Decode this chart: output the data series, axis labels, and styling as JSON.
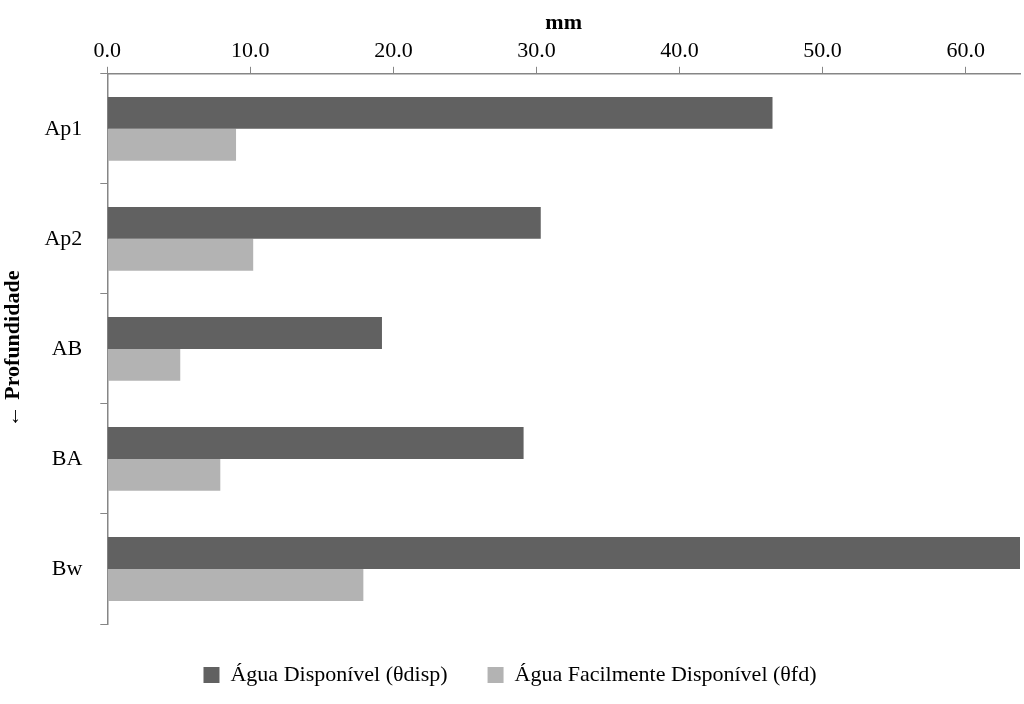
{
  "chart_data": {
    "type": "bar",
    "orientation": "horizontal",
    "xlabel": "mm",
    "ylabel": "← Profundidade",
    "categories": [
      "Ap1",
      "Ap2",
      "AB",
      "BA",
      "Bw"
    ],
    "series": [
      {
        "name": "Água Disponível (θdisp)",
        "color": "#616161",
        "values": [
          46.5,
          30.3,
          19.2,
          29.1,
          63.8
        ]
      },
      {
        "name": "Água Facilmente Disponível (θfd)",
        "color": "#b3b3b3",
        "values": [
          9.0,
          10.2,
          5.1,
          7.9,
          17.9
        ]
      }
    ],
    "xlim": [
      0,
      63.8
    ],
    "xticks": [
      {
        "value": 0,
        "label": "0.0"
      },
      {
        "value": 10,
        "label": "10.0"
      },
      {
        "value": 20,
        "label": "20.0"
      },
      {
        "value": 30,
        "label": "30.0"
      },
      {
        "value": 40,
        "label": "40.0"
      },
      {
        "value": 50,
        "label": "50.0"
      },
      {
        "value": 60,
        "label": "60.0"
      }
    ],
    "grid": false,
    "legend": "bottom"
  }
}
